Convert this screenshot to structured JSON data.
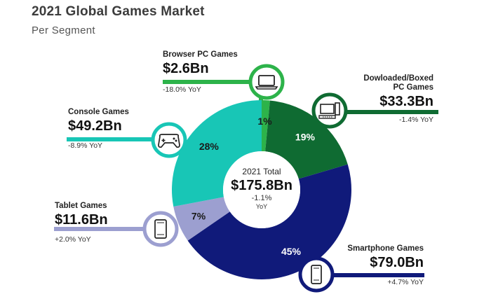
{
  "page": {
    "title": "2021 Global Games Market",
    "subtitle": "Per Segment"
  },
  "center": {
    "label": "2021 Total",
    "value": "$175.8Bn",
    "change": "-1.1%",
    "unit": "YoY"
  },
  "colors": {
    "browser_pc": "#2db34a",
    "downloaded_pc": "#0f6b32",
    "smartphone": "#101a7a",
    "tablet": "#9c9fd0",
    "console": "#18c6b6"
  },
  "chart_data": {
    "type": "pie",
    "title": "2021 Global Games Market",
    "subtitle": "Per Segment",
    "total": 175.8,
    "unit": "$Bn",
    "slices": [
      {
        "name": "Browser PC Games",
        "value": 2.6,
        "value_label": "$2.6Bn",
        "percent_label": "1%",
        "yoy": "-18.0% YoY",
        "color": "#2db34a",
        "icon": "laptop-icon"
      },
      {
        "name": "Dowloaded/Boxed PC Games",
        "value": 33.3,
        "value_label": "$33.3Bn",
        "percent_label": "19%",
        "yoy": "-1.4% YoY",
        "color": "#0f6b32",
        "icon": "desktop-computer-icon"
      },
      {
        "name": "Smartphone Games",
        "value": 79.0,
        "value_label": "$79.0Bn",
        "percent_label": "45%",
        "yoy": "+4.7% YoY",
        "color": "#101a7a",
        "icon": "smartphone-icon"
      },
      {
        "name": "Tablet Games",
        "value": 11.6,
        "value_label": "$11.6Bn",
        "percent_label": "7%",
        "yoy": "+2.0% YoY",
        "color": "#9c9fd0",
        "icon": "tablet-icon"
      },
      {
        "name": "Console Games",
        "value": 49.2,
        "value_label": "$49.2Bn",
        "percent_label": "28%",
        "yoy": "-8.9% YoY",
        "color": "#18c6b6",
        "icon": "gamepad-icon"
      }
    ]
  },
  "labels": {
    "browser": {
      "name": "Browser PC Games",
      "value": "$2.6Bn",
      "yoy": "-18.0% YoY"
    },
    "downloaded": {
      "name_line1": "Dowloaded/Boxed",
      "name_line2": "PC Games",
      "value": "$33.3Bn",
      "yoy": "-1.4% YoY"
    },
    "console": {
      "name": "Console Games",
      "value": "$49.2Bn",
      "yoy": "-8.9% YoY"
    },
    "tablet": {
      "name": "Tablet Games",
      "value": "$11.6Bn",
      "yoy": "+2.0% YoY"
    },
    "smartphone": {
      "name": "Smartphone Games",
      "value": "$79.0Bn",
      "yoy": "+4.7% YoY"
    }
  }
}
